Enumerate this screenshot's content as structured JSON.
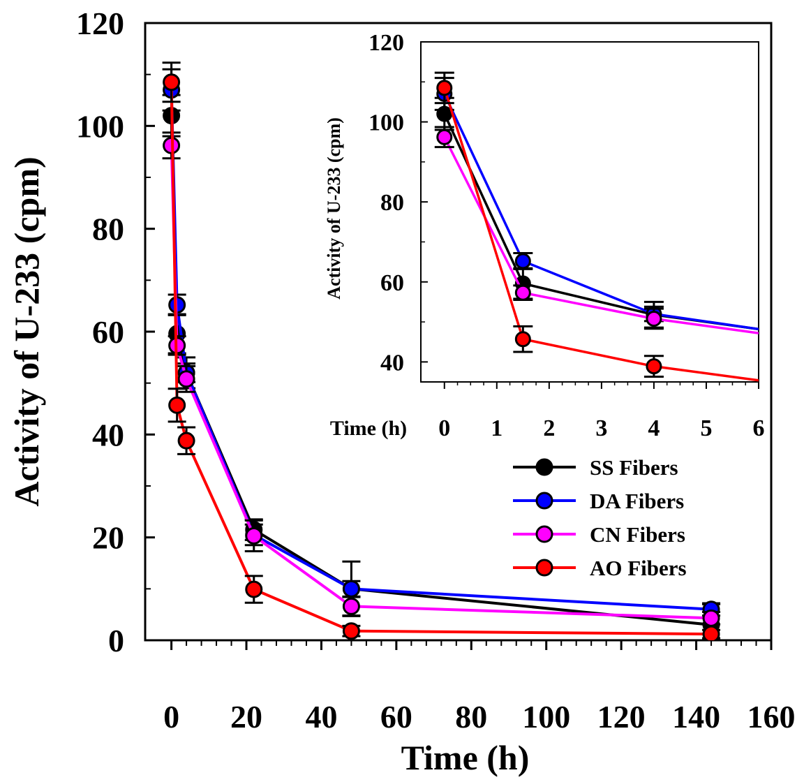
{
  "chart_data": [
    {
      "type": "line",
      "title": "",
      "xlabel": "Time (h)",
      "ylabel": "Activity of U-233 (cpm)",
      "xlim": [
        -7,
        160
      ],
      "ylim": [
        0,
        120
      ],
      "x_ticks": [
        "0",
        "20",
        "40",
        "60",
        "80",
        "100",
        "120",
        "140",
        "160"
      ],
      "y_ticks": [
        "0",
        "20",
        "40",
        "60",
        "80",
        "100",
        "120"
      ],
      "grid": false,
      "legend_position": "bottom-right",
      "x": [
        0,
        1.5,
        4,
        22,
        48,
        144
      ],
      "series": [
        {
          "name": "SS Fibers",
          "color": "#000000",
          "values": [
            102,
            59.6,
            52,
            21.5,
            10,
            3
          ],
          "error": [
            4,
            3.8,
            3,
            2,
            5.3,
            4
          ]
        },
        {
          "name": "DA Fibers",
          "color": "#0000ff",
          "values": [
            107,
            65.2,
            52,
            20.5,
            10,
            6
          ],
          "error": [
            4,
            2,
            1.8,
            2,
            1.5,
            1.2
          ]
        },
        {
          "name": "CN Fibers",
          "color": "#ff00ff",
          "values": [
            96.2,
            57.3,
            50.8,
            20.3,
            6.6,
            4.3
          ],
          "error": [
            2.5,
            1.8,
            2.5,
            3,
            1.8,
            1.2
          ]
        },
        {
          "name": "AO Fibers",
          "color": "#ff0000",
          "values": [
            108.5,
            45.7,
            38.8,
            9.9,
            1.8,
            1.2
          ],
          "error": [
            3.8,
            3.2,
            2.6,
            2.6,
            1,
            0.8
          ]
        }
      ]
    },
    {
      "type": "line",
      "title": "",
      "xlabel": "Time (h)",
      "ylabel": "Activity of U-233 (cpm)",
      "xlim": [
        -0.45,
        6
      ],
      "ylim": [
        35,
        120
      ],
      "x_ticks": [
        "0",
        "1",
        "2",
        "3",
        "4",
        "5",
        "6"
      ],
      "y_ticks": [
        "40",
        "60",
        "80",
        "100",
        "120"
      ],
      "grid": false,
      "x": [
        0,
        1.5,
        4,
        6
      ],
      "series": [
        {
          "name": "SS Fibers",
          "color": "#000000",
          "values": [
            102,
            59.6,
            51.8,
            48.2
          ],
          "error": [
            4,
            3.8,
            3.2,
            null
          ]
        },
        {
          "name": "DA Fibers",
          "color": "#0000ff",
          "values": [
            107,
            65.2,
            52,
            48.2
          ],
          "error": [
            4,
            2,
            1.8,
            null
          ]
        },
        {
          "name": "CN Fibers",
          "color": "#ff00ff",
          "values": [
            96.2,
            57.3,
            50.8,
            47.2
          ],
          "error": [
            2.5,
            1.8,
            2.5,
            null
          ]
        },
        {
          "name": "AO Fibers",
          "color": "#ff0000",
          "values": [
            108.5,
            45.7,
            38.9,
            35.4
          ],
          "error": [
            3.8,
            3.2,
            2.6,
            null
          ]
        }
      ]
    }
  ]
}
